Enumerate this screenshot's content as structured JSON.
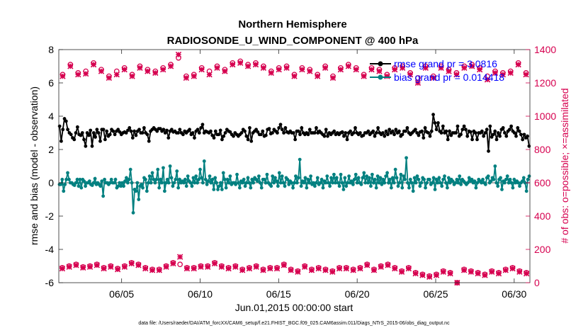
{
  "chart_data": {
    "type": "line",
    "title": "Northern Hemisphere",
    "subtitle": "RADIOSONDE_U_WIND_COMPONENT @ 400 hPa",
    "xlabel": "Jun.01,2015 00:00:00 start",
    "ylabel": "rmse and bias (model - observation)",
    "ylabel_right": "# of obs: o=possible; ×=assimilated",
    "xlim": [
      0,
      30
    ],
    "ylim": [
      -6,
      8
    ],
    "ylim_right": [
      0,
      1400
    ],
    "x_ticks": [
      4,
      9,
      14,
      19,
      24,
      29
    ],
    "x_tick_labels": [
      "06/05",
      "06/10",
      "06/15",
      "06/20",
      "06/25",
      "06/30"
    ],
    "y_ticks": [
      -6,
      -4,
      -2,
      0,
      2,
      4,
      6,
      8
    ],
    "y_tick_labels": [
      "-6",
      "-4",
      "-2",
      "0",
      "2",
      "4",
      "6",
      "8"
    ],
    "y_ticks_right": [
      0,
      200,
      400,
      600,
      800,
      1000,
      1200,
      1400
    ],
    "y_tick_labels_right": [
      "0",
      "200",
      "400",
      "600",
      "800",
      "1000",
      "1200",
      "1400"
    ],
    "zero_line": 0,
    "legend": [
      {
        "label": "rmse grand pr = 3.0816",
        "color": "#000000"
      },
      {
        "label": "bias grand pr = 0.014418",
        "color": "#008080"
      }
    ],
    "series": [
      {
        "name": "rmse",
        "axis": "left",
        "color": "#000000",
        "values": [
          3.4,
          2.5,
          3.2,
          3.85,
          3.7,
          3.2,
          3.0,
          2.9,
          2.7,
          2.6,
          3.0,
          3.35,
          2.9,
          2.85,
          3.0,
          2.6,
          2.2,
          3.0,
          2.85,
          3.15,
          2.2,
          3.0,
          2.75,
          3.2,
          3.0,
          2.5,
          3.2,
          3.2,
          2.6,
          3.1,
          2.8,
          2.9,
          3.2,
          3.1,
          2.9,
          3.1,
          3.2,
          3.05,
          2.9,
          3.0,
          3.05,
          3.0,
          3.15,
          3.3,
          3.1,
          2.7,
          3.1,
          2.85,
          3.1,
          3.2,
          3.0,
          3.0,
          3.3,
          3.0,
          2.9,
          2.5,
          3.1,
          3.2,
          3.3,
          3.2,
          3.1,
          3.25,
          3.25,
          3.1,
          3.2,
          3.0,
          3.15,
          2.7,
          3.1,
          3.2,
          3.05,
          3.1,
          3.0,
          3.0,
          3.2,
          3.0,
          2.9,
          3.1,
          3.0,
          3.1,
          3.2,
          2.9,
          3.0,
          2.7,
          3.1,
          3.2,
          3.0,
          3.3,
          3.5,
          3.0,
          3.1,
          3.05,
          3.0,
          3.1,
          2.85,
          2.7,
          3.1,
          2.9,
          2.9,
          3.15,
          2.6,
          2.8,
          3.0,
          3.2,
          3.1,
          3.05,
          2.9,
          2.8,
          3.0,
          2.9,
          2.8,
          2.9,
          3.0,
          3.2,
          3.1,
          2.8,
          2.6,
          3.3,
          2.5,
          3.0,
          3.1,
          3.2,
          3.05,
          2.9,
          2.9,
          3.1,
          2.8,
          2.85,
          3.2,
          3.25,
          2.95,
          3.0,
          3.2,
          3.1,
          3.0,
          3.3,
          3.5,
          3.2,
          3.0,
          3.3,
          3.05,
          3.0,
          3.1,
          3.0,
          3.0,
          2.6,
          3.1,
          3.1,
          2.9,
          3.3,
          3.0,
          2.9,
          3.0,
          2.9,
          3.2,
          3.0,
          3.0,
          3.0,
          3.3,
          3.0,
          3.1,
          3.0,
          2.9,
          2.8,
          3.2,
          2.8,
          3.0,
          2.9,
          3.0,
          3.1,
          2.9,
          3.0,
          2.9,
          3.0,
          3.05,
          2.8,
          3.0,
          2.6,
          3.0,
          3.1,
          2.9,
          3.0,
          3.3,
          3.0,
          2.9,
          3.0,
          2.8,
          2.85,
          3.0,
          3.0,
          3.1,
          2.9,
          3.0,
          3.1,
          2.8,
          3.0,
          3.3,
          3.0,
          2.9,
          3.0,
          2.8,
          3.1,
          2.9,
          3.2,
          3.0,
          3.1,
          2.9,
          3.2,
          3.0,
          3.1,
          2.8,
          2.9,
          3.1,
          3.1,
          3.3,
          3.0,
          2.9,
          3.0,
          3.1,
          3.2,
          3.0,
          2.85,
          3.05,
          3.1,
          2.7,
          3.3,
          3.05,
          3.0,
          2.8,
          3.1,
          4.1,
          3.6,
          3.2,
          3.6,
          3.1,
          3.0,
          3.4,
          3.0,
          3.1,
          2.6,
          3.1,
          2.85,
          3.0,
          3.0,
          3.0,
          3.4,
          2.8,
          2.9,
          3.2,
          3.4,
          3.2,
          2.8,
          3.1,
          3.05,
          2.6,
          3.1,
          3.0,
          2.6,
          3.0,
          3.0,
          3.1,
          2.8,
          3.0,
          3.2,
          1.9,
          3.4,
          2.75,
          2.9,
          3.1,
          2.6,
          3.0,
          2.8,
          3.2,
          3.3,
          3.0,
          2.8,
          3.1,
          3.2,
          3.4,
          3.1,
          3.0,
          2.8,
          3.3,
          3.1,
          2.9,
          2.6,
          2.9,
          2.7,
          2.8,
          2.2
        ]
      },
      {
        "name": "bias",
        "axis": "left",
        "color": "#008080",
        "values": [
          -0.1,
          -0.1,
          0.2,
          -0.5,
          -0.1,
          0.2,
          0.6,
          0.2,
          0.0,
          0.0,
          -0.1,
          -0.15,
          0.0,
          0.2,
          -0.2,
          0.2,
          -0.3,
          0.2,
          0.1,
          -0.2,
          0.0,
          0.0,
          0.1,
          -0.1,
          -0.15,
          0.0,
          0.25,
          -0.1,
          0.0,
          -0.1,
          -0.2,
          0.1,
          -0.8,
          0.2,
          0.0,
          0.0,
          -0.1,
          0.0,
          0.2,
          0.0,
          0.0,
          0.2,
          -0.3,
          -0.2,
          0.0,
          -0.2,
          0.0,
          -0.2,
          0.1,
          0.3,
          0.0,
          0.2,
          0.8,
          0.0,
          -1.8,
          -0.4,
          -0.5,
          0.0,
          -1.0,
          -0.2,
          -0.1,
          -0.3,
          0.3,
          0.2,
          -0.5,
          0.0,
          0.4,
          0.0,
          0.6,
          0.2,
          0.0,
          0.2,
          0.8,
          -0.3,
          0.2,
          0.0,
          0.9,
          -0.5,
          0.0,
          0.2,
          0.0,
          1.0,
          0.3,
          -0.2,
          0.0,
          0.2,
          0.7,
          -0.3,
          0.2,
          0.0,
          0.1,
          0.0,
          0.2,
          -0.2,
          0.4,
          0.1,
          0.0,
          -0.2,
          0.3,
          0.0,
          0.4,
          0.0,
          0.2,
          0.8,
          0.3,
          0.0,
          1.3,
          0.2,
          -0.1,
          0.1,
          0.4,
          0.0,
          0.2,
          -0.4,
          0.3,
          0.0,
          -0.4,
          -0.2,
          0.0,
          -0.4,
          0.6,
          0.2,
          -0.3,
          0.2,
          0.0,
          0.4,
          -0.1,
          0.0,
          0.0,
          -0.1,
          0.5,
          0.0,
          -0.3,
          0.1,
          0.0,
          0.2,
          -0.2,
          0.0,
          0.3,
          0.0,
          -0.3,
          0.2,
          0.0,
          0.3,
          0.2,
          0.1,
          0.4,
          0.0,
          -0.3,
          0.2,
          0.2,
          0.0,
          0.5,
          0.0,
          -0.1,
          -0.2,
          0.4,
          0.0,
          0.3,
          0.1,
          -0.2,
          0.6,
          0.0,
          0.4,
          0.0,
          -0.2,
          0.3,
          0.2,
          -0.1,
          0.1,
          0.0,
          -0.3,
          0.0,
          0.4,
          0.0,
          0.3,
          1.4,
          -0.2,
          0.1,
          0.0,
          0.3,
          -0.3,
          0.2,
          0.0,
          0.4,
          -0.1,
          0.0,
          -0.2,
          0.0,
          0.3,
          -0.1,
          0.0,
          0.2,
          -0.3,
          0.1,
          0.0,
          0.4,
          0.0,
          -0.2,
          0.3,
          0.0,
          0.5,
          0.0,
          0.3,
          0.0,
          -0.2,
          0.5,
          0.0,
          -0.4,
          0.3,
          -0.2,
          0.0,
          0.4,
          0.0,
          0.1,
          -0.1,
          0.2,
          0.5,
          0.0,
          0.3,
          0.0,
          -0.1,
          0.3,
          0.6,
          0.0,
          0.4,
          0.0,
          0.3,
          -0.2,
          0.5,
          0.0,
          0.2,
          -0.3,
          0.4,
          0.0,
          0.3,
          -0.1,
          0.2,
          0.0,
          0.4,
          0.6,
          0.0,
          0.2,
          -0.3,
          0.3,
          0.0,
          0.8,
          0.3,
          -0.2,
          0.0,
          0.5,
          -0.3,
          0.4,
          0.2,
          1.5,
          0.0,
          -0.3,
          0.2,
          0.0,
          -0.5,
          0.3,
          0.0,
          0.4,
          0.2,
          -0.2,
          0.0,
          0.3,
          0.2,
          -0.3,
          0.0,
          0.2,
          0.2,
          -0.1,
          0.0,
          0.3,
          -0.4,
          0.2,
          0.0,
          0.3,
          0.0,
          -0.2,
          0.2,
          0.4,
          0.0,
          -0.3,
          0.3,
          0.0,
          0.2,
          0.1,
          -0.1,
          0.0,
          0.2,
          0.0,
          0.4,
          -0.1,
          0.2,
          0.1,
          0.0,
          -0.1,
          0.0,
          0.3,
          0.1,
          0.2,
          0.0,
          0.1,
          -0.3,
          0.0,
          0.2,
          0.1,
          0.0,
          0.2,
          0.0,
          -0.1,
          0.3,
          0.4,
          0.0,
          0.1,
          0.3,
          0.2,
          1.0,
          0.0,
          -0.2,
          0.2,
          0.3,
          -0.4,
          0.1,
          0.0,
          0.2,
          0.4,
          0.0,
          0.2,
          0.0,
          -0.3,
          0.2,
          0.0,
          0.1,
          0.0,
          -0.2,
          0.0,
          0.1,
          0.3,
          0.0,
          -0.5,
          0.2,
          0.4
        ]
      }
    ],
    "obs_possible": {
      "axis": "right",
      "marker": "o",
      "color": "#d6004f",
      "values": [
        1250,
        1310,
        1260,
        1270,
        1320,
        1280,
        1240,
        1270,
        1290,
        1250,
        1300,
        1280,
        1270,
        1290,
        1310,
        1350,
        1240,
        1250,
        1290,
        1270,
        1300,
        1280,
        1320,
        1330,
        1310,
        1320,
        1300,
        1270,
        1290,
        1300,
        1250,
        1290,
        1280,
        1250,
        1300,
        1240,
        1290,
        1310,
        1290,
        1250,
        1290,
        1280,
        1250,
        1290,
        1300,
        1260,
        1230,
        1300,
        1240,
        1300,
        1280,
        1260,
        1300,
        1310,
        1290,
        1240,
        1270,
        1260,
        1270,
        1320,
        1260
      ]
    },
    "obs_assimilated": {
      "axis": "right",
      "marker": "x",
      "color": "#d6004f",
      "values": [
        1240,
        1300,
        1250,
        1255,
        1310,
        1270,
        1230,
        1250,
        1280,
        1240,
        1290,
        1270,
        1260,
        1280,
        1300,
        1370,
        1230,
        1240,
        1280,
        1250,
        1290,
        1270,
        1310,
        1320,
        1300,
        1310,
        1290,
        1260,
        1280,
        1290,
        1240,
        1280,
        1270,
        1240,
        1290,
        1230,
        1280,
        1300,
        1280,
        1240,
        1280,
        1270,
        1240,
        1280,
        1290,
        1250,
        1200,
        1290,
        1230,
        1290,
        1270,
        1250,
        1290,
        1300,
        1280,
        1220,
        1260,
        1250,
        1260,
        1310,
        1250
      ]
    },
    "obs_possible_low": {
      "axis": "right",
      "marker": "o",
      "color": "#d6004f",
      "values": [
        90,
        100,
        110,
        95,
        100,
        110,
        90,
        100,
        85,
        100,
        120,
        110,
        90,
        80,
        80,
        100,
        120,
        110,
        90,
        90,
        100,
        100,
        120,
        100,
        90,
        100,
        80,
        90,
        100,
        80,
        90,
        90,
        110,
        80,
        70,
        100,
        80,
        90,
        80,
        70,
        90,
        90,
        80,
        90,
        110,
        80,
        100,
        110,
        90,
        70,
        90,
        60,
        50,
        40,
        50,
        70,
        60,
        0,
        80,
        70,
        60,
        50,
        70,
        60,
        80,
        90,
        70,
        60
      ]
    },
    "obs_assimilated_low": {
      "axis": "right",
      "marker": "x",
      "color": "#d6004f",
      "values": [
        85,
        95,
        105,
        90,
        95,
        105,
        85,
        95,
        80,
        95,
        115,
        105,
        85,
        75,
        75,
        95,
        115,
        155,
        85,
        85,
        95,
        95,
        115,
        95,
        85,
        95,
        75,
        85,
        95,
        75,
        85,
        85,
        105,
        75,
        65,
        95,
        75,
        85,
        75,
        65,
        85,
        85,
        75,
        85,
        105,
        75,
        95,
        105,
        85,
        65,
        85,
        55,
        45,
        35,
        45,
        65,
        55,
        0,
        75,
        65,
        55,
        45,
        65,
        55,
        75,
        85,
        65,
        55
      ]
    }
  },
  "footer": "data file: /Users/raeder/DAI/ATM_forcXX/CAM6_setup/f.e21.FHIST_BGC.f09_025.CAM6assim.011/Diags_NTrS_2015-06/obs_diag_output.nc"
}
